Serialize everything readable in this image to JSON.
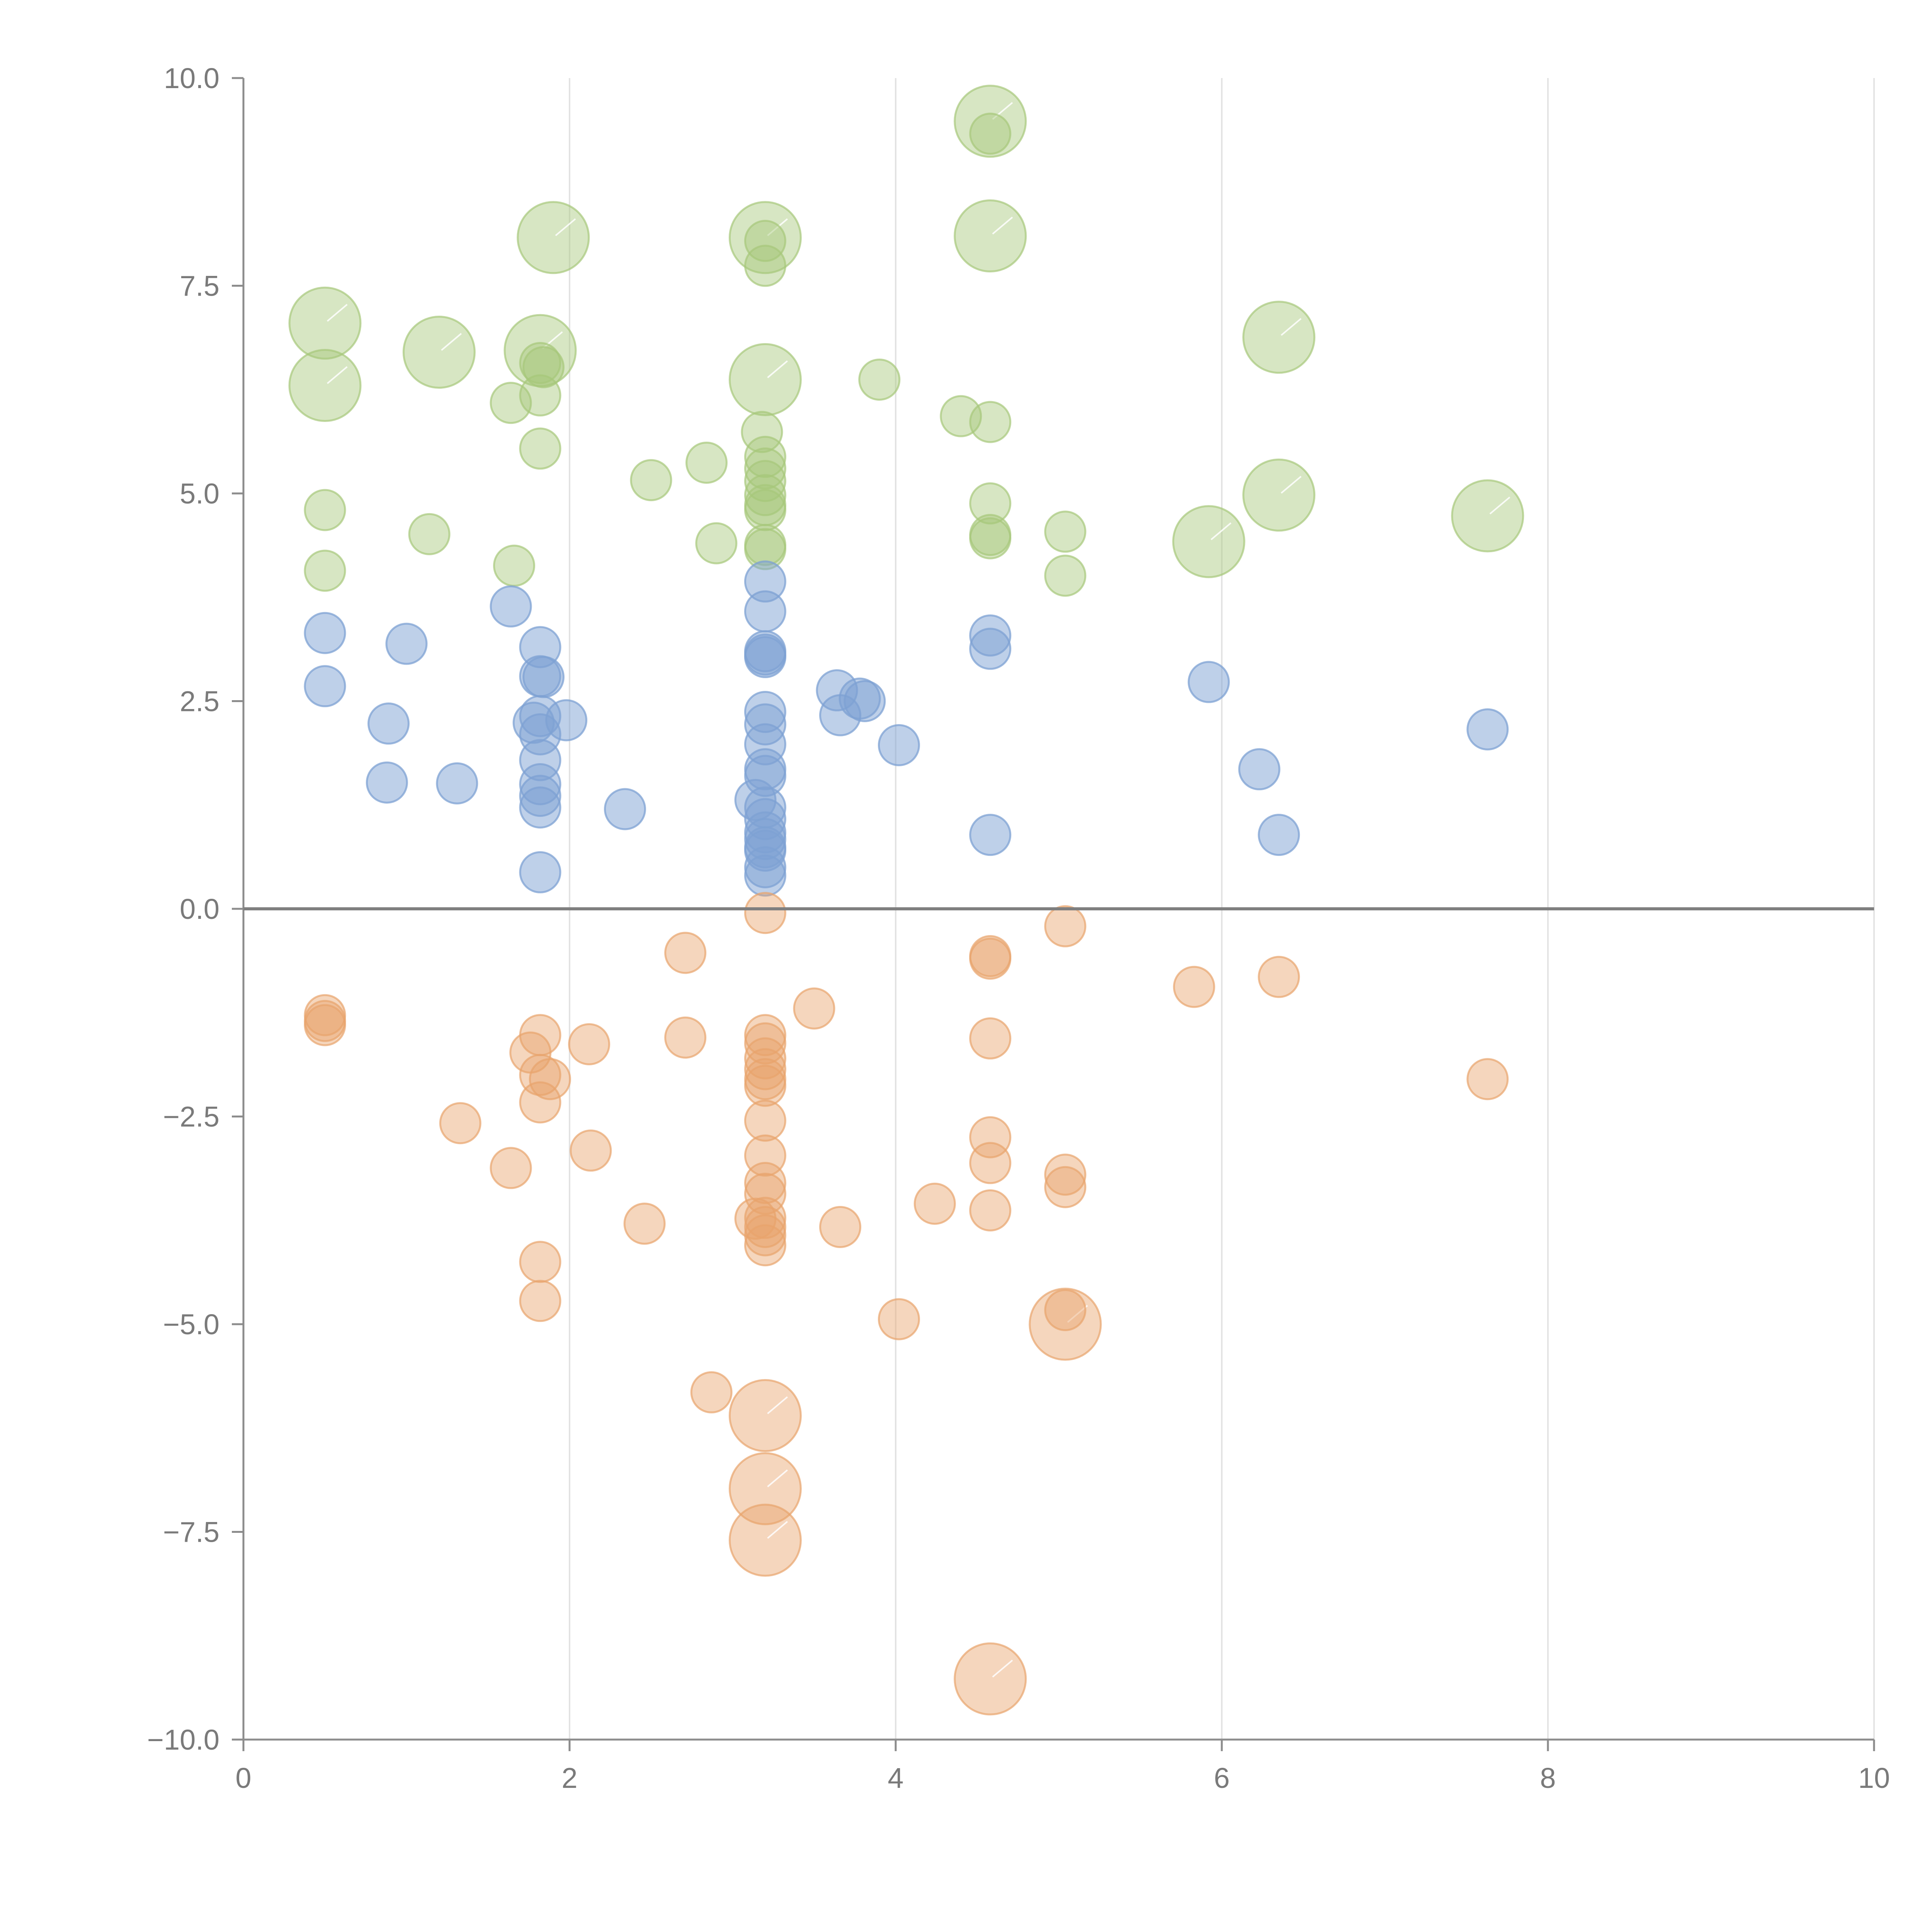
{
  "colors": {
    "background": "#ffffff",
    "axis": "#8c8c8c",
    "grid": "#e3e3e3",
    "zero_line": "#7f7f7f",
    "tick_label": "#7a7a7a"
  },
  "chart_data": {
    "type": "scatter",
    "variant": "bubble",
    "title": "",
    "xlabel": "",
    "ylabel": "",
    "xlim": [
      0,
      10
    ],
    "ylim": [
      -10,
      10
    ],
    "grid": "vertical-only",
    "reference_line_y": 0,
    "legend": "none",
    "x_ticks": [
      "0",
      "2",
      "4",
      "6",
      "8",
      "10"
    ],
    "y_ticks": [
      "−10.0",
      "−7.5",
      "−5.0",
      "−2.5",
      "0.0",
      "2.5",
      "5.0",
      "7.5",
      "10.0"
    ],
    "x_tick_values": [
      0,
      2,
      4,
      6,
      8,
      10
    ],
    "y_tick_values": [
      -10,
      -7.5,
      -5,
      -2.5,
      0,
      2.5,
      5,
      7.5,
      10
    ],
    "series": [
      {
        "color": "#a6c77a",
        "opacity": 0.45,
        "points": [
          {
            "x": 0.5,
            "y": 7.05,
            "r": 3
          },
          {
            "x": 0.5,
            "y": 6.3,
            "r": 3
          },
          {
            "x": 1.2,
            "y": 6.7,
            "r": 3
          },
          {
            "x": 1.82,
            "y": 6.72,
            "r": 3
          },
          {
            "x": 1.9,
            "y": 8.08,
            "r": 3
          },
          {
            "x": 3.2,
            "y": 8.08,
            "r": 3
          },
          {
            "x": 3.2,
            "y": 6.37,
            "r": 3
          },
          {
            "x": 4.58,
            "y": 9.48,
            "r": 3
          },
          {
            "x": 4.58,
            "y": 8.1,
            "r": 3
          },
          {
            "x": 6.35,
            "y": 6.88,
            "r": 3
          },
          {
            "x": 6.35,
            "y": 4.98,
            "r": 3
          },
          {
            "x": 5.92,
            "y": 4.42,
            "r": 3
          },
          {
            "x": 7.63,
            "y": 4.73,
            "r": 3
          },
          {
            "x": 0.5,
            "y": 4.8,
            "r": 1
          },
          {
            "x": 0.5,
            "y": 4.07,
            "r": 1
          },
          {
            "x": 1.14,
            "y": 4.51,
            "r": 1
          },
          {
            "x": 1.64,
            "y": 6.09,
            "r": 1
          },
          {
            "x": 1.66,
            "y": 4.13,
            "r": 1
          },
          {
            "x": 1.82,
            "y": 6.18,
            "r": 1
          },
          {
            "x": 1.82,
            "y": 6.57,
            "r": 1
          },
          {
            "x": 1.84,
            "y": 6.52,
            "r": 1
          },
          {
            "x": 1.82,
            "y": 5.54,
            "r": 1
          },
          {
            "x": 2.5,
            "y": 5.16,
            "r": 1
          },
          {
            "x": 2.84,
            "y": 5.37,
            "r": 1
          },
          {
            "x": 2.9,
            "y": 4.4,
            "r": 1
          },
          {
            "x": 3.2,
            "y": 8.04,
            "r": 1
          },
          {
            "x": 3.2,
            "y": 7.74,
            "r": 1
          },
          {
            "x": 3.18,
            "y": 5.74,
            "r": 1
          },
          {
            "x": 3.2,
            "y": 5.44,
            "r": 1
          },
          {
            "x": 3.2,
            "y": 5.3,
            "r": 1
          },
          {
            "x": 3.2,
            "y": 5.15,
            "r": 1
          },
          {
            "x": 3.2,
            "y": 4.98,
            "r": 1
          },
          {
            "x": 3.2,
            "y": 4.86,
            "r": 1
          },
          {
            "x": 3.2,
            "y": 4.8,
            "r": 1
          },
          {
            "x": 3.2,
            "y": 4.38,
            "r": 1
          },
          {
            "x": 3.2,
            "y": 4.33,
            "r": 1
          },
          {
            "x": 3.9,
            "y": 6.37,
            "r": 1
          },
          {
            "x": 4.4,
            "y": 5.93,
            "r": 1
          },
          {
            "x": 4.58,
            "y": 5.86,
            "r": 1
          },
          {
            "x": 4.58,
            "y": 9.33,
            "r": 1
          },
          {
            "x": 4.58,
            "y": 4.88,
            "r": 1
          },
          {
            "x": 4.58,
            "y": 4.5,
            "r": 1
          },
          {
            "x": 4.58,
            "y": 4.46,
            "r": 1
          },
          {
            "x": 5.04,
            "y": 4.54,
            "r": 1
          },
          {
            "x": 5.04,
            "y": 4.01,
            "r": 1
          }
        ]
      },
      {
        "color": "#7ea1d3",
        "opacity": 0.5,
        "points": [
          {
            "x": 0.5,
            "y": 3.32,
            "r": 1
          },
          {
            "x": 0.5,
            "y": 2.68,
            "r": 1
          },
          {
            "x": 1.0,
            "y": 3.19,
            "r": 1
          },
          {
            "x": 0.89,
            "y": 2.23,
            "r": 1
          },
          {
            "x": 0.88,
            "y": 1.52,
            "r": 1
          },
          {
            "x": 1.31,
            "y": 1.51,
            "r": 1
          },
          {
            "x": 1.64,
            "y": 3.64,
            "r": 1
          },
          {
            "x": 1.82,
            "y": 3.15,
            "r": 1
          },
          {
            "x": 1.82,
            "y": 2.8,
            "r": 1
          },
          {
            "x": 1.84,
            "y": 2.79,
            "r": 1
          },
          {
            "x": 1.82,
            "y": 2.32,
            "r": 1
          },
          {
            "x": 1.78,
            "y": 2.24,
            "r": 1
          },
          {
            "x": 1.82,
            "y": 2.1,
            "r": 1
          },
          {
            "x": 1.98,
            "y": 2.27,
            "r": 1
          },
          {
            "x": 1.82,
            "y": 1.79,
            "r": 1
          },
          {
            "x": 1.82,
            "y": 1.5,
            "r": 1
          },
          {
            "x": 1.82,
            "y": 1.36,
            "r": 1
          },
          {
            "x": 1.82,
            "y": 1.22,
            "r": 1
          },
          {
            "x": 1.82,
            "y": 0.44,
            "r": 1
          },
          {
            "x": 2.34,
            "y": 1.2,
            "r": 1
          },
          {
            "x": 3.2,
            "y": 3.94,
            "r": 1
          },
          {
            "x": 3.2,
            "y": 3.58,
            "r": 1
          },
          {
            "x": 3.2,
            "y": 3.1,
            "r": 1
          },
          {
            "x": 3.2,
            "y": 3.03,
            "r": 1
          },
          {
            "x": 3.2,
            "y": 3.06,
            "r": 1
          },
          {
            "x": 3.2,
            "y": 2.37,
            "r": 1
          },
          {
            "x": 3.2,
            "y": 2.22,
            "r": 1
          },
          {
            "x": 3.2,
            "y": 1.98,
            "r": 1
          },
          {
            "x": 3.2,
            "y": 1.68,
            "r": 1
          },
          {
            "x": 3.2,
            "y": 1.6,
            "r": 1
          },
          {
            "x": 3.14,
            "y": 1.31,
            "r": 1
          },
          {
            "x": 3.2,
            "y": 1.22,
            "r": 1
          },
          {
            "x": 3.2,
            "y": 1.08,
            "r": 1
          },
          {
            "x": 3.2,
            "y": 0.92,
            "r": 1
          },
          {
            "x": 3.2,
            "y": 0.84,
            "r": 1
          },
          {
            "x": 3.2,
            "y": 0.74,
            "r": 1
          },
          {
            "x": 3.2,
            "y": 0.7,
            "r": 1
          },
          {
            "x": 3.2,
            "y": 0.5,
            "r": 1
          },
          {
            "x": 3.2,
            "y": 0.4,
            "r": 1
          },
          {
            "x": 3.64,
            "y": 2.63,
            "r": 1
          },
          {
            "x": 3.66,
            "y": 2.33,
            "r": 1
          },
          {
            "x": 3.78,
            "y": 2.53,
            "r": 1
          },
          {
            "x": 3.81,
            "y": 2.5,
            "r": 1
          },
          {
            "x": 4.02,
            "y": 1.97,
            "r": 1
          },
          {
            "x": 4.58,
            "y": 3.29,
            "r": 1
          },
          {
            "x": 4.58,
            "y": 3.13,
            "r": 1
          },
          {
            "x": 4.58,
            "y": 0.89,
            "r": 1
          },
          {
            "x": 5.92,
            "y": 2.73,
            "r": 1
          },
          {
            "x": 6.23,
            "y": 1.68,
            "r": 1
          },
          {
            "x": 6.35,
            "y": 0.89,
            "r": 1
          },
          {
            "x": 7.63,
            "y": 2.16,
            "r": 1
          }
        ]
      },
      {
        "color": "#e8a46c",
        "opacity": 0.45,
        "points": [
          {
            "x": 3.2,
            "y": -6.1,
            "r": 3
          },
          {
            "x": 3.2,
            "y": -6.98,
            "r": 3
          },
          {
            "x": 3.2,
            "y": -7.6,
            "r": 3
          },
          {
            "x": 5.04,
            "y": -5.0,
            "r": 3
          },
          {
            "x": 4.58,
            "y": -9.27,
            "r": 3
          },
          {
            "x": 0.5,
            "y": -1.28,
            "r": 1
          },
          {
            "x": 0.5,
            "y": -1.35,
            "r": 1
          },
          {
            "x": 0.5,
            "y": -1.4,
            "r": 1
          },
          {
            "x": 1.33,
            "y": -2.58,
            "r": 1
          },
          {
            "x": 1.64,
            "y": -3.12,
            "r": 1
          },
          {
            "x": 1.76,
            "y": -1.73,
            "r": 1
          },
          {
            "x": 1.82,
            "y": -1.52,
            "r": 1
          },
          {
            "x": 1.82,
            "y": -2.0,
            "r": 1
          },
          {
            "x": 1.88,
            "y": -2.05,
            "r": 1
          },
          {
            "x": 1.82,
            "y": -2.33,
            "r": 1
          },
          {
            "x": 1.82,
            "y": -4.25,
            "r": 1
          },
          {
            "x": 1.82,
            "y": -4.72,
            "r": 1
          },
          {
            "x": 2.12,
            "y": -1.63,
            "r": 1
          },
          {
            "x": 2.13,
            "y": -2.91,
            "r": 1
          },
          {
            "x": 2.46,
            "y": -3.79,
            "r": 1
          },
          {
            "x": 2.71,
            "y": -0.53,
            "r": 1
          },
          {
            "x": 2.71,
            "y": -1.55,
            "r": 1
          },
          {
            "x": 2.87,
            "y": -5.82,
            "r": 1
          },
          {
            "x": 3.2,
            "y": -0.05,
            "r": 1
          },
          {
            "x": 3.2,
            "y": -1.52,
            "r": 1
          },
          {
            "x": 3.2,
            "y": -1.62,
            "r": 1
          },
          {
            "x": 3.2,
            "y": -1.8,
            "r": 1
          },
          {
            "x": 3.2,
            "y": -1.93,
            "r": 1
          },
          {
            "x": 3.2,
            "y": -2.05,
            "r": 1
          },
          {
            "x": 3.2,
            "y": -2.13,
            "r": 1
          },
          {
            "x": 3.2,
            "y": -2.55,
            "r": 1
          },
          {
            "x": 3.2,
            "y": -2.97,
            "r": 1
          },
          {
            "x": 3.2,
            "y": -3.3,
            "r": 1
          },
          {
            "x": 3.2,
            "y": -3.43,
            "r": 1
          },
          {
            "x": 3.14,
            "y": -3.73,
            "r": 1
          },
          {
            "x": 3.2,
            "y": -3.72,
            "r": 1
          },
          {
            "x": 3.2,
            "y": -3.83,
            "r": 1
          },
          {
            "x": 3.2,
            "y": -3.93,
            "r": 1
          },
          {
            "x": 3.2,
            "y": -4.05,
            "r": 1
          },
          {
            "x": 3.5,
            "y": -1.2,
            "r": 1
          },
          {
            "x": 3.66,
            "y": -3.83,
            "r": 1
          },
          {
            "x": 4.02,
            "y": -4.94,
            "r": 1
          },
          {
            "x": 4.24,
            "y": -3.55,
            "r": 1
          },
          {
            "x": 4.58,
            "y": -0.57,
            "r": 1
          },
          {
            "x": 4.58,
            "y": -0.6,
            "r": 1
          },
          {
            "x": 4.58,
            "y": -1.56,
            "r": 1
          },
          {
            "x": 4.58,
            "y": -2.75,
            "r": 1
          },
          {
            "x": 4.58,
            "y": -3.06,
            "r": 1
          },
          {
            "x": 4.58,
            "y": -3.63,
            "r": 1
          },
          {
            "x": 5.04,
            "y": -0.21,
            "r": 1
          },
          {
            "x": 5.04,
            "y": -3.2,
            "r": 1
          },
          {
            "x": 5.04,
            "y": -3.35,
            "r": 1
          },
          {
            "x": 5.04,
            "y": -4.83,
            "r": 1
          },
          {
            "x": 5.83,
            "y": -0.94,
            "r": 1
          },
          {
            "x": 6.35,
            "y": -0.82,
            "r": 1
          },
          {
            "x": 7.63,
            "y": -2.05,
            "r": 1
          }
        ]
      }
    ]
  }
}
